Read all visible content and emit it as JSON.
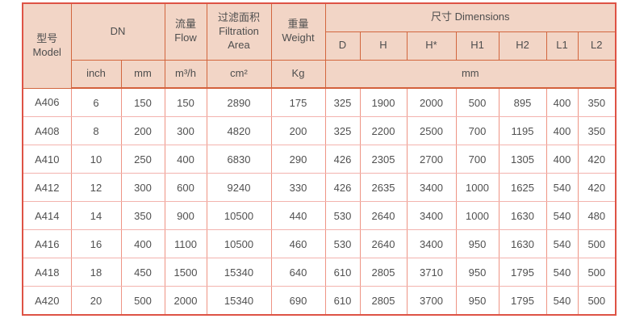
{
  "table": {
    "header": {
      "model": "型号\nModel",
      "dn": "DN",
      "flow": "流量\nFlow",
      "filtration": "过滤面积\nFiltration\nArea",
      "weight": "重量\nWeight",
      "dimensions": "尺寸 Dimensions",
      "dim_cols": [
        "D",
        "H",
        "H*",
        "H1",
        "H2",
        "L1",
        "L2"
      ],
      "units": {
        "inch": "inch",
        "mm": "mm",
        "flow": "m³/h",
        "area": "cm²",
        "weight": "Kg",
        "dims_mm": "mm"
      }
    }
  },
  "chart_data": {
    "type": "table",
    "title": "尺寸 Dimensions specification table",
    "columns": [
      "型号 Model",
      "DN inch",
      "DN mm",
      "流量 Flow m³/h",
      "过滤面积 Filtration Area cm²",
      "重量 Weight Kg",
      "D mm",
      "H mm",
      "H* mm",
      "H1 mm",
      "H2 mm",
      "L1 mm",
      "L2 mm"
    ],
    "rows": [
      [
        "A406",
        "6",
        "150",
        "150",
        "2890",
        "175",
        "325",
        "1900",
        "2000",
        "500",
        "895",
        "400",
        "350"
      ],
      [
        "A408",
        "8",
        "200",
        "300",
        "4820",
        "200",
        "325",
        "2200",
        "2500",
        "700",
        "1195",
        "400",
        "350"
      ],
      [
        "A410",
        "10",
        "250",
        "400",
        "6830",
        "290",
        "426",
        "2305",
        "2700",
        "700",
        "1305",
        "400",
        "420"
      ],
      [
        "A412",
        "12",
        "300",
        "600",
        "9240",
        "330",
        "426",
        "2635",
        "3400",
        "1000",
        "1625",
        "540",
        "420"
      ],
      [
        "A414",
        "14",
        "350",
        "900",
        "10500",
        "440",
        "530",
        "2640",
        "3400",
        "1000",
        "1630",
        "540",
        "480"
      ],
      [
        "A416",
        "16",
        "400",
        "1100",
        "10500",
        "460",
        "530",
        "2640",
        "3400",
        "950",
        "1630",
        "540",
        "500"
      ],
      [
        "A418",
        "18",
        "450",
        "1500",
        "15340",
        "640",
        "610",
        "2805",
        "3710",
        "950",
        "1795",
        "540",
        "500"
      ],
      [
        "A420",
        "20",
        "500",
        "2000",
        "15340",
        "690",
        "610",
        "2805",
        "3700",
        "950",
        "1795",
        "540",
        "500"
      ]
    ]
  },
  "colors": {
    "header_bg": "#f2d5c6",
    "header_border": "#d2663e",
    "outer_border": "#de5345",
    "row_line_horizontal": "#f3b3ae",
    "row_line_vertical": "#ee9484",
    "text": "#4e4e4e"
  }
}
